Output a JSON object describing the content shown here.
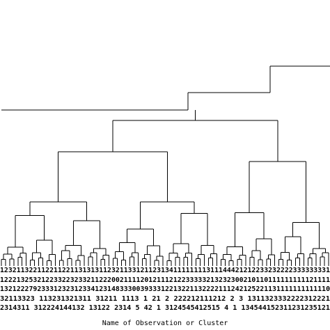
{
  "chart_data": {
    "type": "dendrogram",
    "title": "",
    "xlabel": "Name of Observation or Cluster",
    "ylabel": "",
    "leaf_label_rows": [
      "12321132211221122113131311232113312112313411111111311144421212233232222333333331",
      "12221325321223322323321122200211112012111212233333213232300210110111111111121111",
      "13212227923331232312334123148333003933312213221132222111242125221131111111111110",
      "32113323  113231321311  31211   1113  1   21  2  222212111212     2  3  1311323332222312221",
      "2314311   312224144132  13122  2314  5  42  1  3124545412515     4  1  134544152311231235121"
    ],
    "colors": {
      "ink": "#000000",
      "background": "#ffffff"
    }
  }
}
